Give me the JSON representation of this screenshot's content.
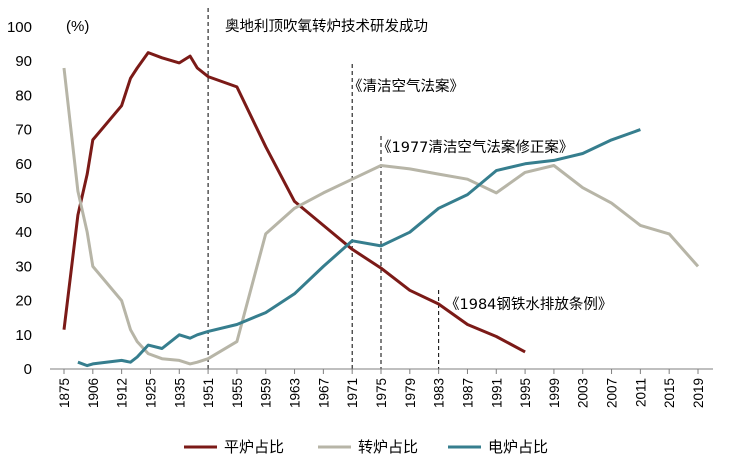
{
  "chart_data": {
    "type": "line",
    "unit_label": "(%)",
    "ylim": [
      0,
      100
    ],
    "yticks": [
      0,
      10,
      20,
      30,
      40,
      50,
      60,
      70,
      80,
      90,
      100
    ],
    "categories": [
      "1875",
      "1906",
      "1912",
      "1925",
      "1935",
      "1951",
      "1955",
      "1959",
      "1963",
      "1967",
      "1971",
      "1975",
      "1979",
      "1983",
      "1987",
      "1991",
      "1995",
      "1999",
      "2003",
      "2007",
      "2011",
      "2015",
      "2019"
    ],
    "grid": false,
    "legend_position": "bottom",
    "series": [
      {
        "name": "平炉占比",
        "color": "#7b1a17",
        "points": [
          [
            1875,
            11.5
          ],
          [
            1890,
            45
          ],
          [
            1900,
            57
          ],
          [
            1906,
            67
          ],
          [
            1912,
            77
          ],
          [
            1916,
            85
          ],
          [
            1919,
            88
          ],
          [
            1924,
            92.5
          ],
          [
            1929,
            91
          ],
          [
            1935,
            89.5
          ],
          [
            1941,
            91.5
          ],
          [
            1945,
            88
          ],
          [
            1951,
            85.5
          ],
          [
            1955,
            82.5
          ],
          [
            1959,
            65
          ],
          [
            1963,
            49
          ],
          [
            1967,
            42
          ],
          [
            1971,
            35
          ],
          [
            1975,
            29.5
          ],
          [
            1979,
            23
          ],
          [
            1983,
            19
          ],
          [
            1987,
            13
          ],
          [
            1991,
            9.5
          ],
          [
            1995,
            5
          ]
        ]
      },
      {
        "name": "转炉占比",
        "color": "#b7b5a7",
        "points": [
          [
            1875,
            88
          ],
          [
            1890,
            52
          ],
          [
            1900,
            40
          ],
          [
            1906,
            30
          ],
          [
            1912,
            20
          ],
          [
            1916,
            11.5
          ],
          [
            1919,
            8
          ],
          [
            1924,
            4.5
          ],
          [
            1929,
            3
          ],
          [
            1935,
            2.5
          ],
          [
            1941,
            1.5
          ],
          [
            1945,
            2
          ],
          [
            1951,
            3
          ],
          [
            1955,
            8
          ],
          [
            1959,
            39.5
          ],
          [
            1963,
            47
          ],
          [
            1967,
            51.5
          ],
          [
            1971,
            55.5
          ],
          [
            1975,
            59.5
          ],
          [
            1979,
            58.5
          ],
          [
            1983,
            57
          ],
          [
            1987,
            55.5
          ],
          [
            1991,
            51.5
          ],
          [
            1995,
            57.5
          ],
          [
            1999,
            59.5
          ],
          [
            2003,
            53
          ],
          [
            2007,
            48.5
          ],
          [
            2011,
            42
          ],
          [
            2015,
            39.5
          ],
          [
            2019,
            30
          ]
        ]
      },
      {
        "name": "电炉占比",
        "color": "#367e8e",
        "points": [
          [
            1890,
            2
          ],
          [
            1900,
            1
          ],
          [
            1906,
            1.5
          ],
          [
            1912,
            2.5
          ],
          [
            1916,
            2
          ],
          [
            1919,
            3.5
          ],
          [
            1924,
            7
          ],
          [
            1929,
            6
          ],
          [
            1935,
            10
          ],
          [
            1941,
            9
          ],
          [
            1945,
            10
          ],
          [
            1951,
            11
          ],
          [
            1955,
            13
          ],
          [
            1959,
            16.5
          ],
          [
            1963,
            22
          ],
          [
            1967,
            30
          ],
          [
            1971,
            37.5
          ],
          [
            1975,
            36
          ],
          [
            1979,
            40
          ],
          [
            1983,
            47
          ],
          [
            1987,
            51
          ],
          [
            1991,
            58
          ],
          [
            1995,
            60
          ],
          [
            1999,
            61
          ],
          [
            2003,
            63
          ],
          [
            2007,
            67
          ],
          [
            2011,
            70
          ]
        ]
      }
    ],
    "annotations": [
      {
        "text": "奥地利顶吹氧转炉技术研发成功",
        "year": 1951
      },
      {
        "text": "《清洁空气法案》",
        "year": 1971
      },
      {
        "text": "《1977清洁空气法案修正案》",
        "year": 1975
      },
      {
        "text": "《1984钢铁水排放条例》",
        "year": 1983
      }
    ]
  }
}
